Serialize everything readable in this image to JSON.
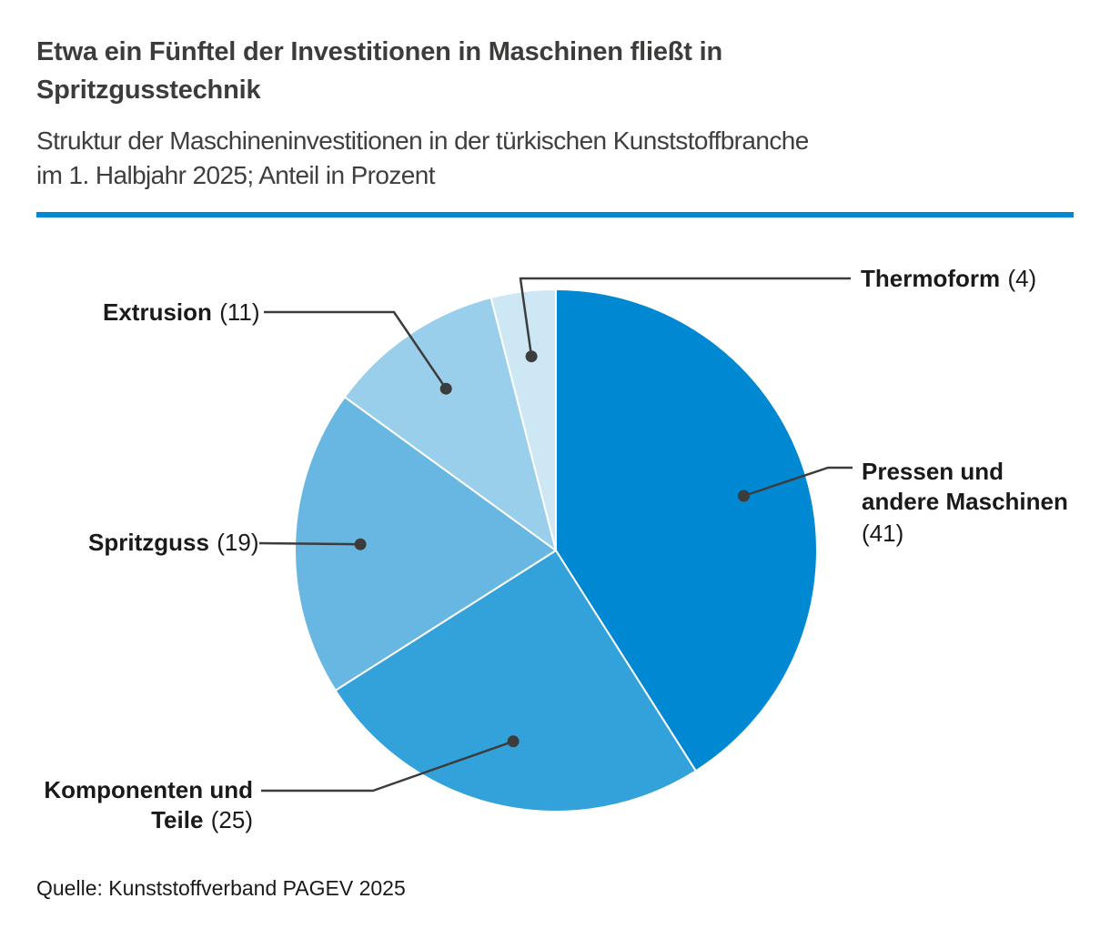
{
  "header": {
    "title": "Etwa ein Fünftel der Investitionen in Maschinen fließt in\nSpritzgusstechnik",
    "subtitle": "Struktur der Maschineninvestitionen in der türkischen Kunststoffbranche\nim 1. Halbjahr 2025; Anteil in Prozent"
  },
  "footer": {
    "source": "Quelle: Kunststoffverband PAGEV 2025"
  },
  "chart_data": {
    "type": "pie",
    "title": "Etwa ein Fünftel der Investitionen in Maschinen fließt in Spritzgusstechnik",
    "subtitle": "Struktur der Maschineninvestitionen in der türkischen Kunststoffbranche im 1. Halbjahr 2025; Anteil in Prozent",
    "unit": "Anteil in Prozent",
    "start_angle_deg": 0,
    "direction": "clockwise",
    "slices": [
      {
        "id": "pressen",
        "label": "Pressen und andere Maschinen",
        "value": 41,
        "color": "#0089d2"
      },
      {
        "id": "komponenten",
        "label": "Komponenten und Teile",
        "value": 25,
        "color": "#33a2da"
      },
      {
        "id": "spritzguss",
        "label": "Spritzguss",
        "value": 19,
        "color": "#67b7e2"
      },
      {
        "id": "extrusion",
        "label": "Extrusion",
        "value": 11,
        "color": "#9acfeb"
      },
      {
        "id": "thermoform",
        "label": "Thermoform",
        "value": 4,
        "color": "#cde7f5"
      }
    ],
    "callouts": {
      "pressen": {
        "name": "Pressen und\nandere Maschinen",
        "value": "(41)"
      },
      "komponenten": {
        "name": "Komponenten und\nTeile",
        "value": "(25)"
      },
      "spritzguss": {
        "name": "Spritzguss",
        "value": "(19)"
      },
      "extrusion": {
        "name": "Extrusion",
        "value": "(11)"
      },
      "thermoform": {
        "name": "Thermoform",
        "value": "(4)"
      }
    },
    "colors": {
      "accent_rule": "#0089d2",
      "leader_line": "#3c3c3c",
      "label_text": "#1a1a1a",
      "heading_text": "#3c3c3b"
    }
  }
}
